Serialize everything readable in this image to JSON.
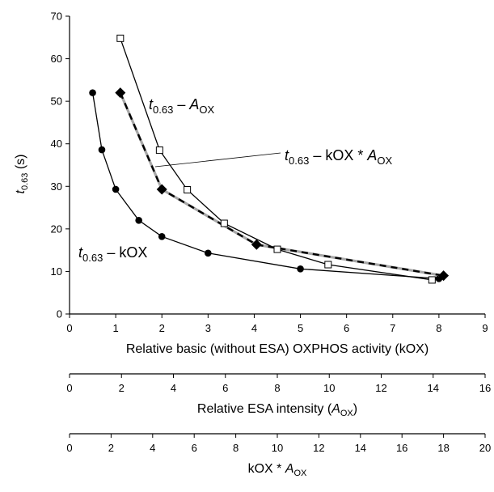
{
  "chart_data": {
    "type": "line",
    "ylabel": {
      "main": "t",
      "sub": "0.63",
      "rest": " (s)"
    },
    "ylim": [
      0,
      70
    ],
    "yticks": [
      0,
      10,
      20,
      30,
      40,
      50,
      60,
      70
    ],
    "axes": [
      {
        "id": "kox",
        "label_parts": [
          "Relative basic (without ESA) OXPHOS activity (kOX)"
        ],
        "range": [
          0,
          9
        ],
        "ticks": [
          0,
          1,
          2,
          3,
          4,
          5,
          6,
          7,
          8,
          9
        ]
      },
      {
        "id": "aox",
        "label_parts": [
          "Relative ESA intensity (",
          "A",
          "OX",
          ")"
        ],
        "range": [
          0,
          16
        ],
        "ticks": [
          0,
          2,
          4,
          6,
          8,
          10,
          12,
          14,
          16
        ]
      },
      {
        "id": "koxaox",
        "label_parts": [
          "kOX * ",
          "A",
          "OX"
        ],
        "range": [
          0,
          20
        ],
        "ticks": [
          0,
          2,
          4,
          6,
          8,
          10,
          12,
          14,
          16,
          18,
          20
        ]
      }
    ],
    "series": [
      {
        "label_parts": [
          "t",
          "0.63",
          " – kOX"
        ],
        "marker": "filled-circle",
        "line": "solid",
        "x": [
          0.5,
          0.7,
          1.0,
          1.5,
          2.0,
          3.0,
          5.0,
          8.0
        ],
        "y": [
          52,
          38.6,
          29.3,
          22,
          18.2,
          14.3,
          10.6,
          8.3
        ]
      },
      {
        "label_parts": [
          "t",
          "0.63",
          " – ",
          "A",
          "OX"
        ],
        "marker": "open-square",
        "line": "solid",
        "x": [
          1.1,
          1.95,
          2.55,
          3.35,
          4.5,
          5.6,
          7.85
        ],
        "y": [
          64.8,
          38.5,
          29.2,
          21.3,
          15.2,
          11.6,
          8.0
        ]
      },
      {
        "label_parts": [
          "t",
          "0.63",
          " – kOX * ",
          "A",
          "OX"
        ],
        "marker": "filled-diamond",
        "line": "dashed",
        "x": [
          1.1,
          2.0,
          4.05,
          8.1
        ],
        "y": [
          52,
          29.3,
          16.3,
          9.0
        ]
      }
    ]
  }
}
